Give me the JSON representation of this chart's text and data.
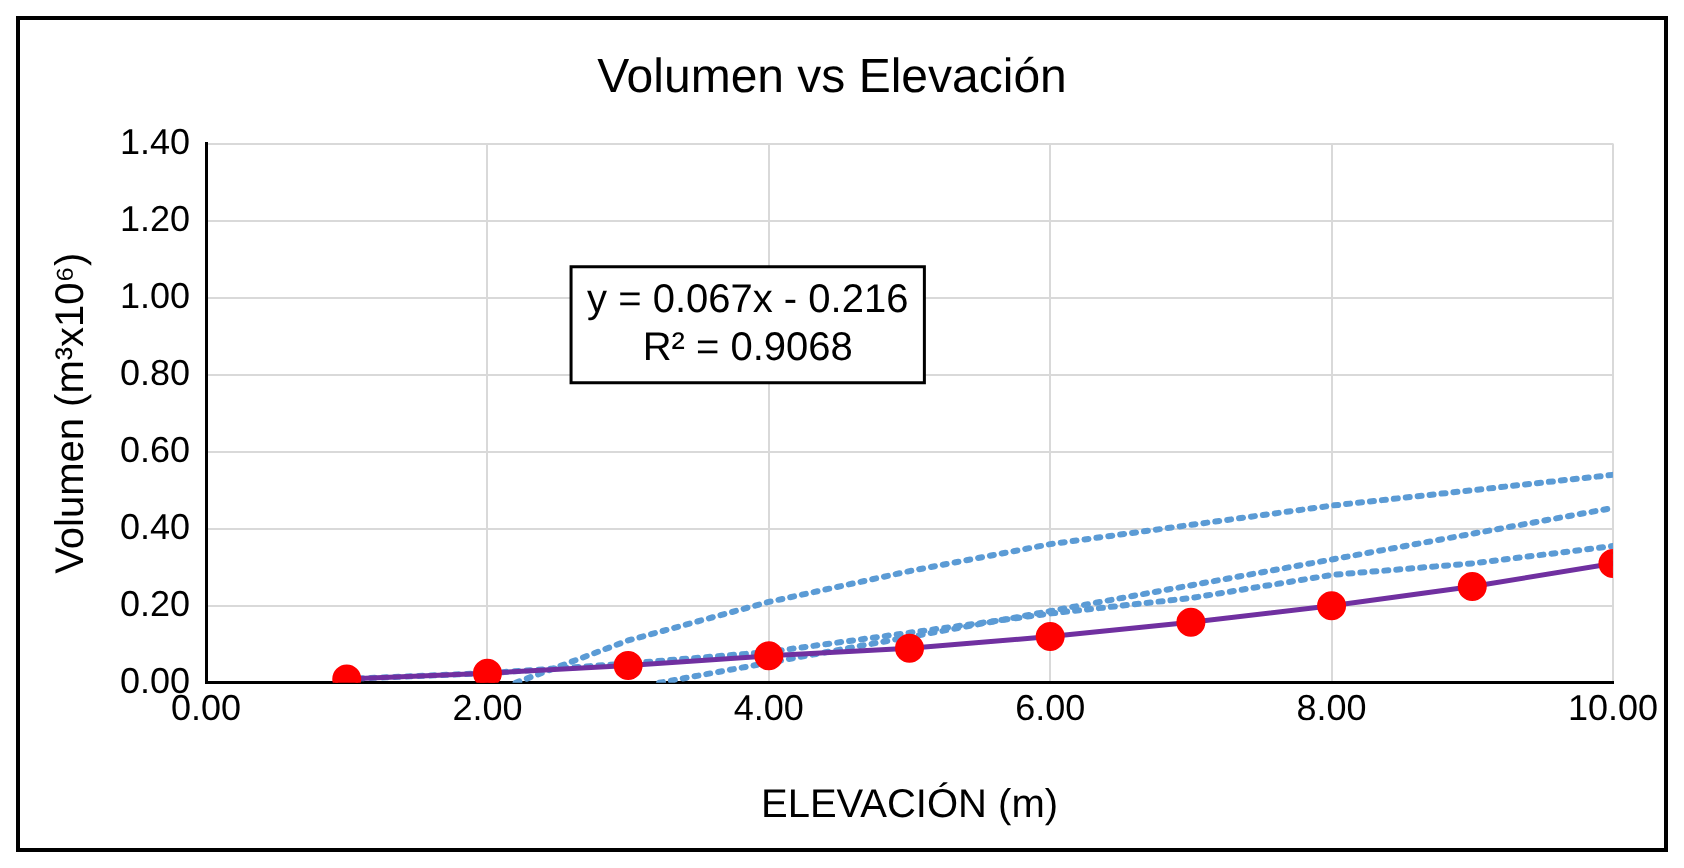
{
  "chart_data": {
    "type": "line",
    "title": "Volumen vs Elevación",
    "xlabel": "ELEVACIÓN (m)",
    "ylabel": "Volumen (m³x10⁶)",
    "x": [
      1,
      2,
      3,
      4,
      5,
      6,
      7,
      8,
      9,
      10
    ],
    "xlim": [
      0,
      10
    ],
    "xticks": [
      {
        "value": 0,
        "label": "0.00"
      },
      {
        "value": 2,
        "label": "2.00"
      },
      {
        "value": 4,
        "label": "4.00"
      },
      {
        "value": 6,
        "label": "6.00"
      },
      {
        "value": 8,
        "label": "8.00"
      },
      {
        "value": 10,
        "label": "10.00"
      }
    ],
    "ylim": [
      0,
      1.4
    ],
    "yticks": [
      {
        "value": 0,
        "label": "0.00"
      },
      {
        "value": 0.2,
        "label": "0.20"
      },
      {
        "value": 0.4,
        "label": "0.40"
      },
      {
        "value": 0.6,
        "label": "0.60"
      },
      {
        "value": 0.8,
        "label": "0.80"
      },
      {
        "value": 1,
        "label": "1.00"
      },
      {
        "value": 1.2,
        "label": "1.20"
      },
      {
        "value": 1.4,
        "label": "1.40"
      }
    ],
    "grid": true,
    "legend": false,
    "marker": "circle",
    "line_style": "solid",
    "annotations": [
      "y = 0.067x - 0.216",
      "R² = 0.9068"
    ],
    "series": [
      {
        "color": "#7030a0",
        "colors": [
          "#ff0000",
          "#ff0000",
          "#ff0000",
          "#ff0000",
          "#ff0000",
          "#ff0000",
          "#ff0000",
          "#ff0000",
          "#ff0000",
          "#ff0000"
        ],
        "values": [
          0.01,
          0.025,
          0.045,
          0.07,
          0.09,
          0.12,
          0.157,
          0.2,
          0.25,
          0.31
        ]
      },
      {
        "type": "line",
        "color": "#5b9bd5",
        "marker": "none",
        "line_style": "dotted",
        "x": [
          2.2,
          3,
          4,
          5,
          6,
          7,
          8,
          9,
          10
        ],
        "values": [
          0,
          0.11,
          0.21,
          0.29,
          0.36,
          0.41,
          0.46,
          0.5,
          0.54
        ]
      },
      {
        "type": "line",
        "color": "#5b9bd5",
        "marker": "none",
        "line_style": "dotted",
        "x": [
          3.22,
          10
        ],
        "values": [
          0,
          0.454
        ]
      },
      {
        "type": "line",
        "color": "#5b9bd5",
        "marker": "none",
        "line_style": "dotted",
        "x": [
          1,
          2,
          3,
          4,
          5,
          6,
          7,
          8,
          9,
          10
        ],
        "values": [
          0.01,
          0.025,
          0.05,
          0.08,
          0.13,
          0.18,
          0.22,
          0.28,
          0.31,
          0.355
        ]
      }
    ]
  }
}
